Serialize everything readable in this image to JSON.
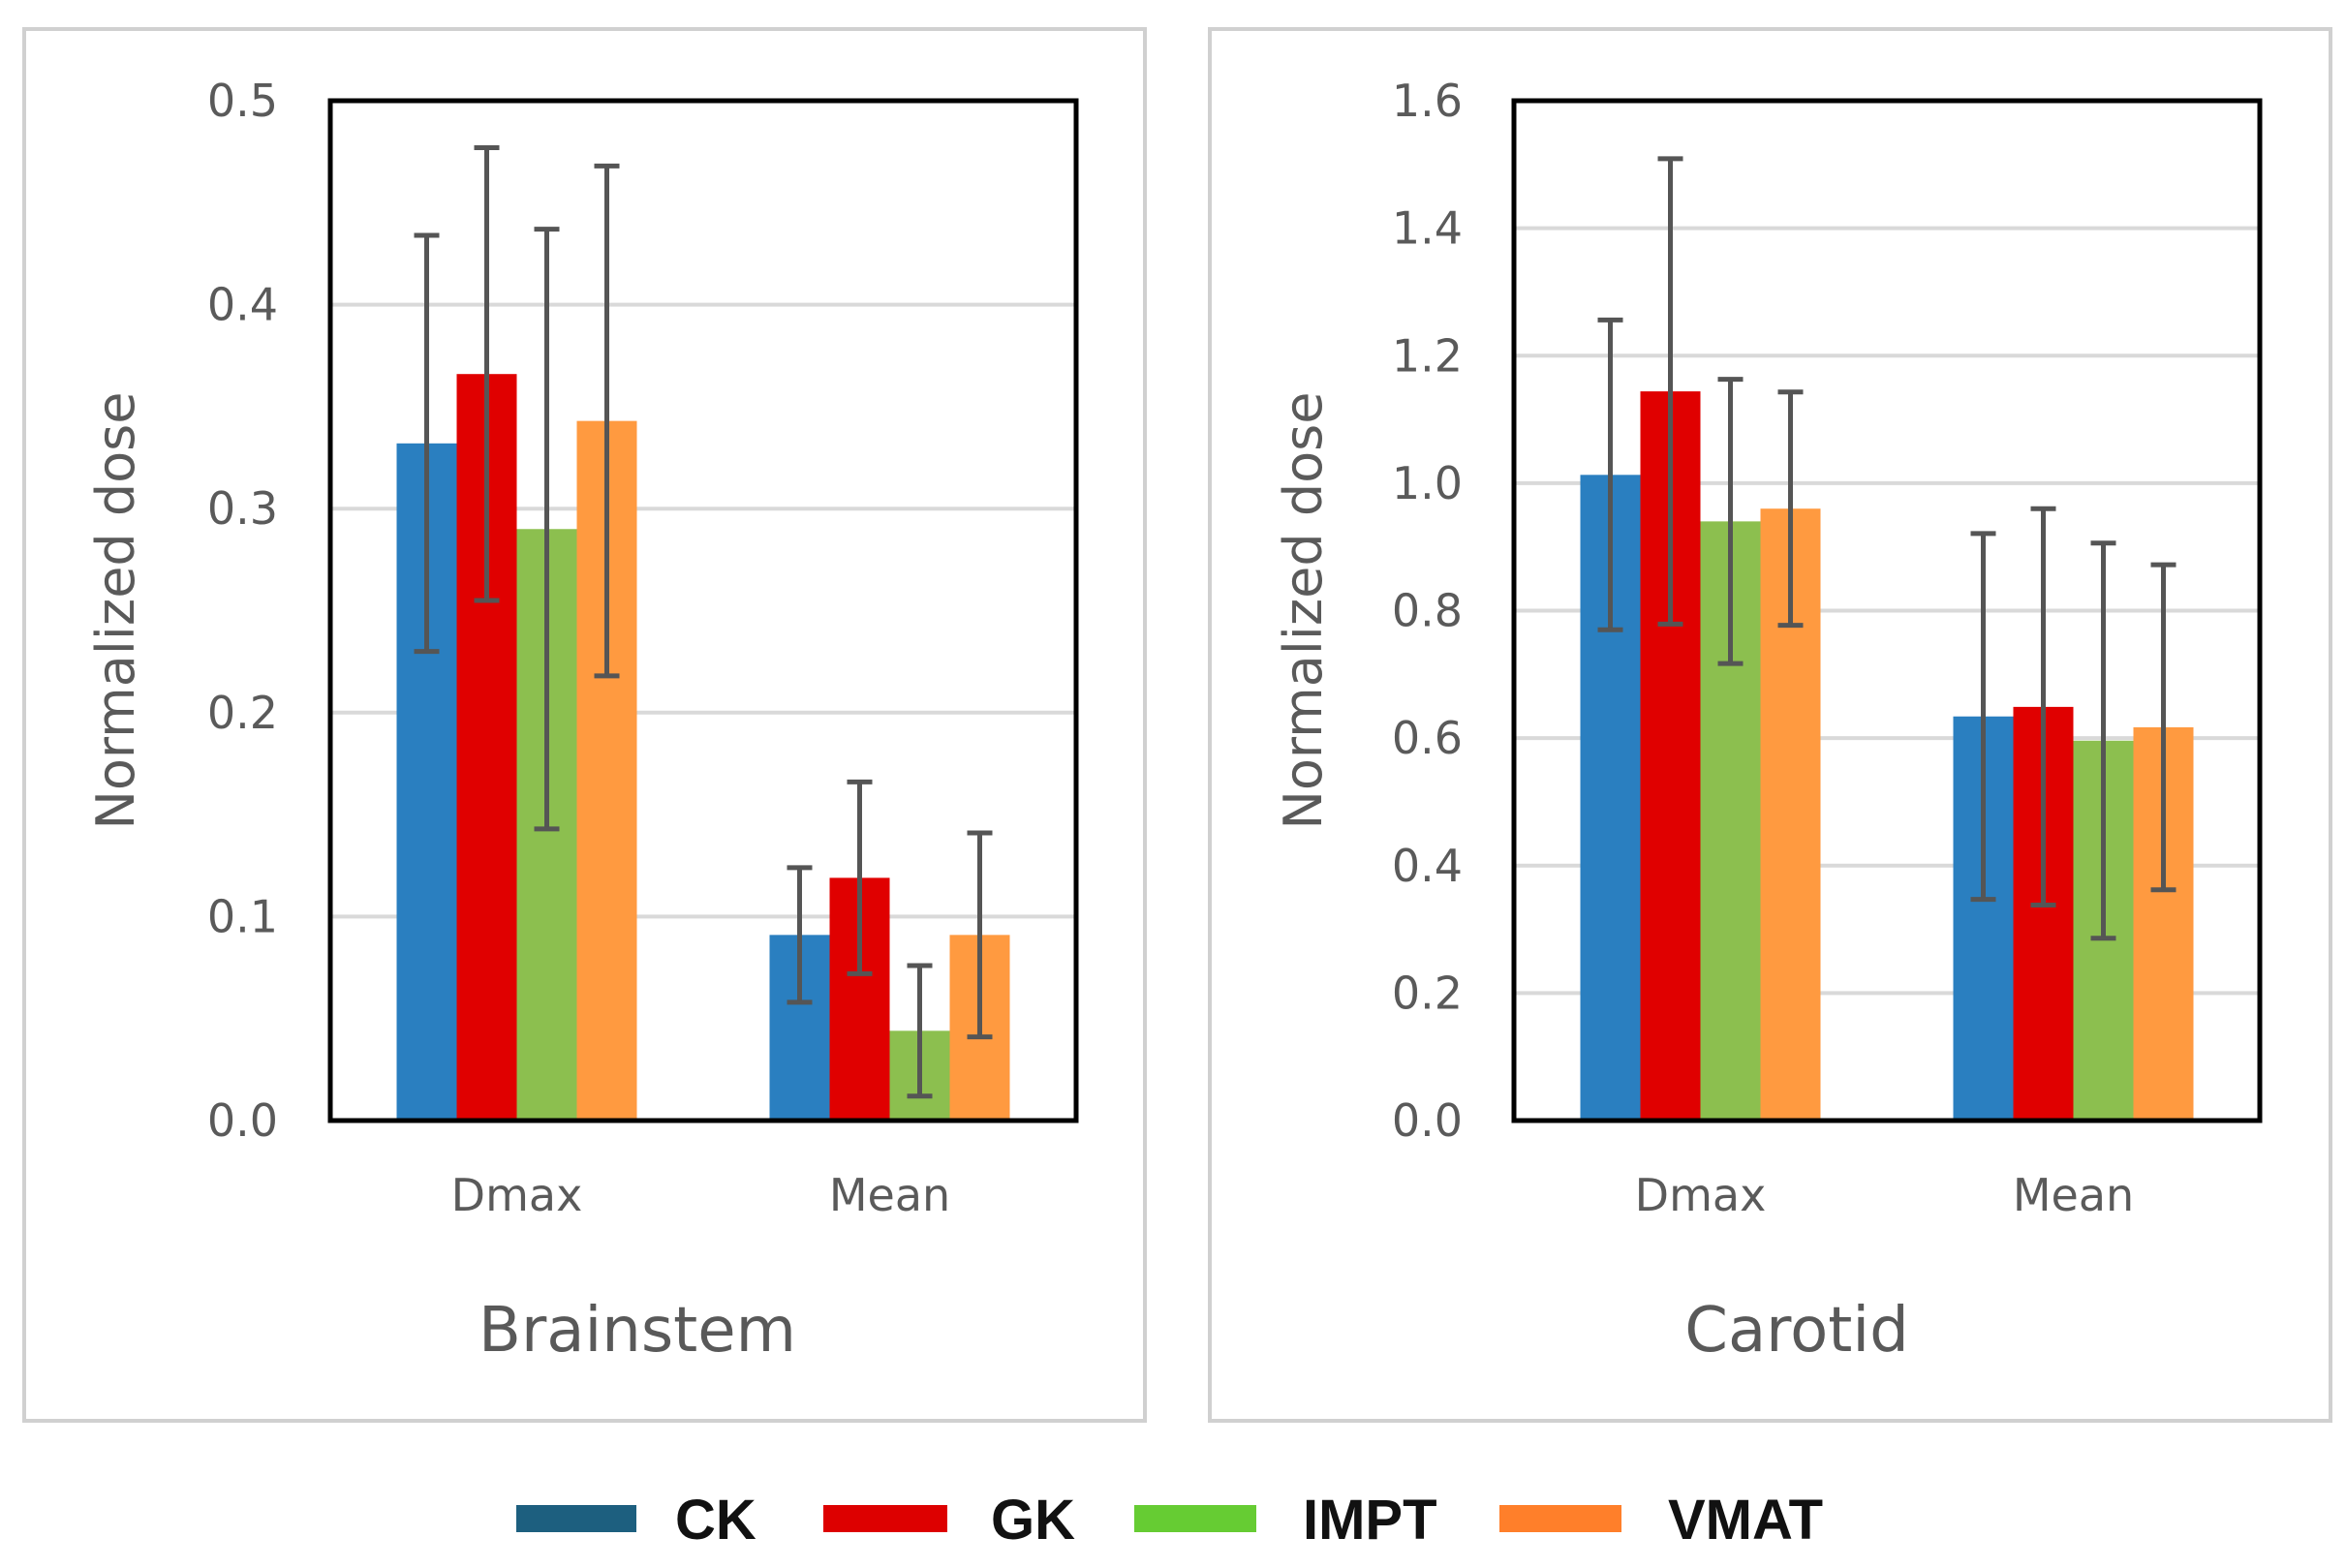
{
  "chart_data": [
    {
      "type": "bar",
      "title": "Brainstem",
      "xlabel": "",
      "ylabel": "Normalized dose",
      "categories": [
        "Dmax",
        "Mean"
      ],
      "ylim": [
        0,
        0.5
      ],
      "yticks": [
        "0.0",
        "0.1",
        "0.2",
        "0.3",
        "0.4",
        "0.5"
      ],
      "grid": true,
      "series": [
        {
          "name": "CK",
          "values": [
            0.332,
            0.091
          ],
          "error": [
            0.102,
            0.033
          ]
        },
        {
          "name": "GK",
          "values": [
            0.366,
            0.119
          ],
          "error": [
            0.111,
            0.047
          ]
        },
        {
          "name": "IMPT",
          "values": [
            0.29,
            0.044
          ],
          "error": [
            0.147,
            0.032
          ]
        },
        {
          "name": "VMAT",
          "values": [
            0.343,
            0.091
          ],
          "error": [
            0.125,
            0.05
          ]
        }
      ]
    },
    {
      "type": "bar",
      "title": "Carotid",
      "xlabel": "",
      "ylabel": "Normalized dose",
      "categories": [
        "Dmax",
        "Mean"
      ],
      "ylim": [
        0,
        1.6
      ],
      "yticks": [
        "0.0",
        "0.2",
        "0.4",
        "0.6",
        "0.8",
        "1.0",
        "1.2",
        "1.4",
        "1.6"
      ],
      "grid": true,
      "series": [
        {
          "name": "CK",
          "values": [
            1.013,
            0.634
          ],
          "error": [
            0.243,
            0.287
          ]
        },
        {
          "name": "GK",
          "values": [
            1.144,
            0.649
          ],
          "error": [
            0.365,
            0.311
          ]
        },
        {
          "name": "IMPT",
          "values": [
            0.94,
            0.596
          ],
          "error": [
            0.223,
            0.31
          ]
        },
        {
          "name": "VMAT",
          "values": [
            0.96,
            0.617
          ],
          "error": [
            0.183,
            0.255
          ]
        }
      ]
    }
  ],
  "legend": {
    "placement": "bottom-center",
    "items": [
      {
        "label": "CK",
        "swatch": "#1d5f7f"
      },
      {
        "label": "GK",
        "swatch": "#dd0000"
      },
      {
        "label": "IMPT",
        "swatch": "#66cc33"
      },
      {
        "label": "VMAT",
        "swatch": "#ff7f2a"
      }
    ]
  },
  "colors": {
    "bars": [
      "#2a7fc0",
      "#e00000",
      "#8cbf4f",
      "#ff9a40"
    ],
    "error_bar": "#555555",
    "grid": "#d9d9d9",
    "frame": "#000000",
    "panel_border": "#d0d0d0"
  }
}
